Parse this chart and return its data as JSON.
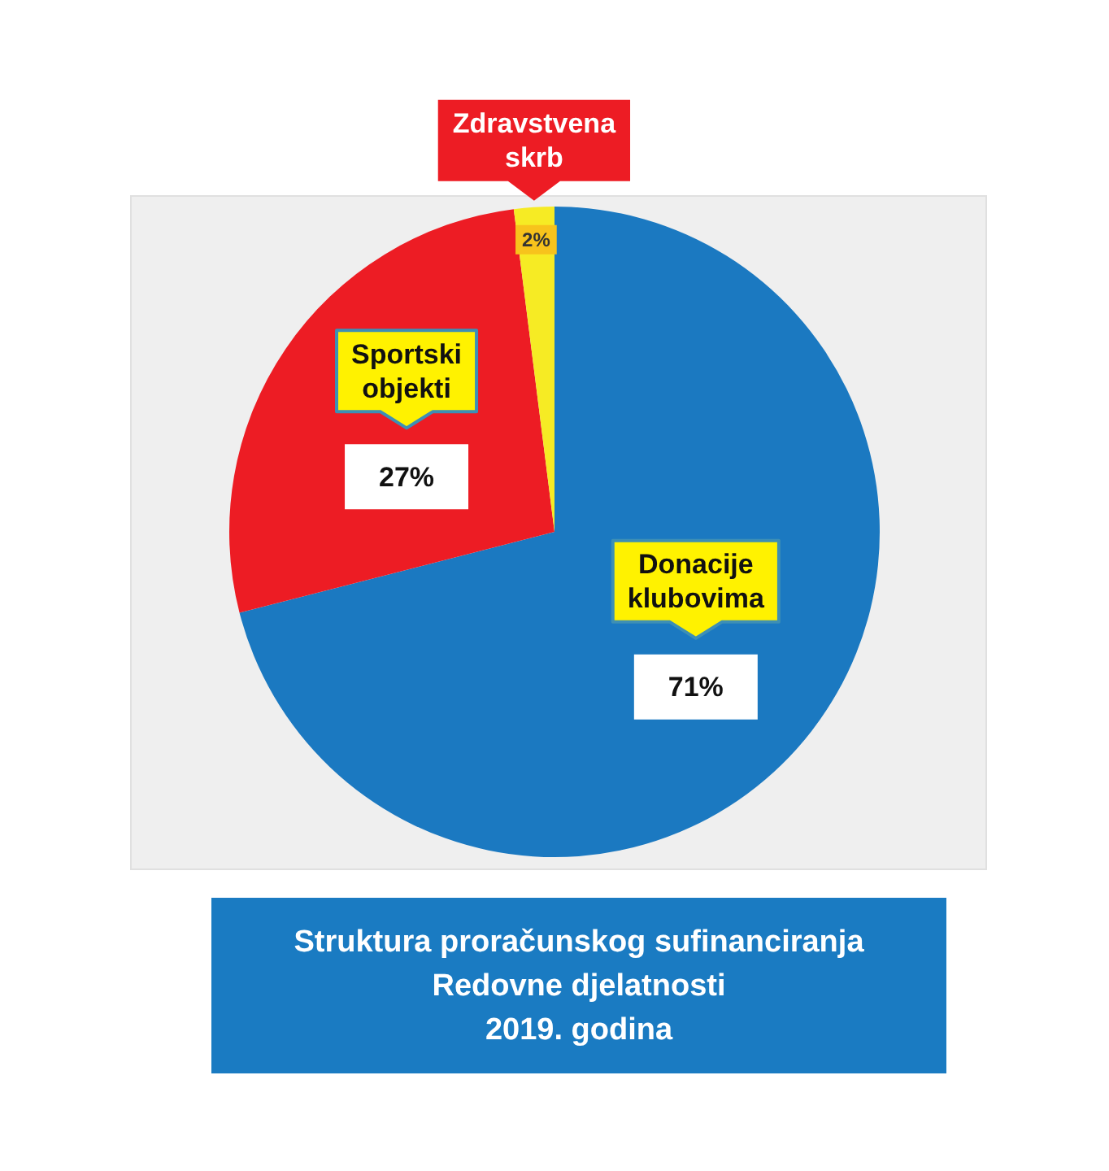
{
  "chart_data": {
    "type": "pie",
    "title": "Struktura proračunskog sufinanciranja\nRedovne djelatnosti\n2019. godina",
    "categories": [
      "Donacije klubovima",
      "Sportski objekti",
      "Zdravstvena skrb"
    ],
    "values": [
      71,
      27,
      2
    ],
    "colors": [
      "#1b79c1",
      "#ed1c24",
      "#f6eb24"
    ],
    "value_labels": [
      "71%",
      "27%",
      "2%"
    ]
  }
}
